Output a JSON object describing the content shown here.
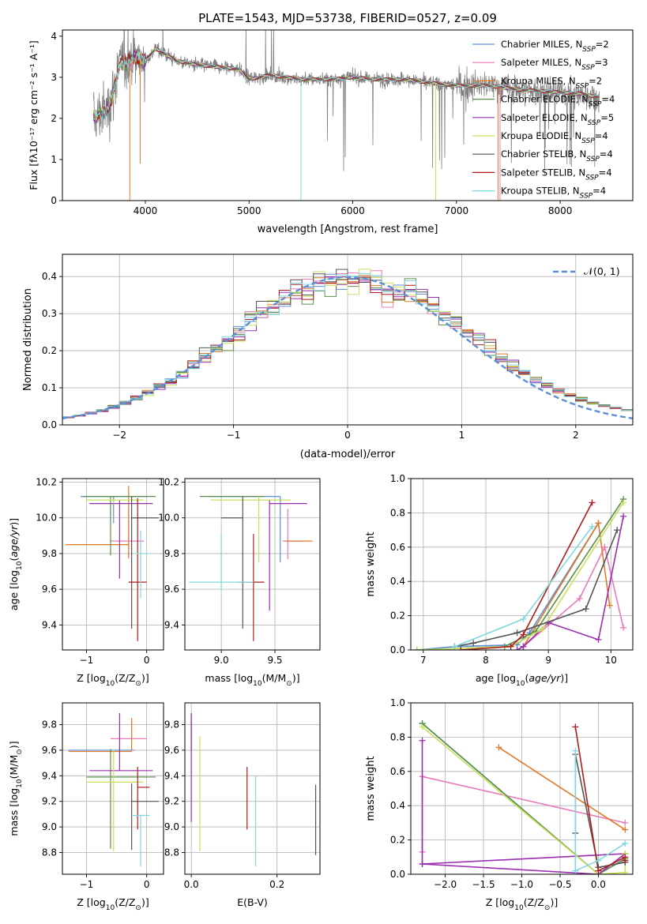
{
  "colors": {
    "Chabrier MILES": "#5b8fd6",
    "Salpeter MILES": "#e87ab9",
    "Kroupa MILES": "#e07b2c",
    "Chabrier ELODIE": "#5a8f4a",
    "Salpeter ELODIE": "#9a2db0",
    "Kroupa ELODIE": "#c8e05a",
    "Chabrier STELIB": "#555555",
    "Salpeter STELIB": "#b01c1c",
    "Kroupa STELIB": "#7fd8dd"
  },
  "chart_data": [
    {
      "panel": "spectrum",
      "type": "line",
      "title": "PLATE=1543, MJD=53738, FIBERID=0527, z=0.09",
      "xlabel": "wavelength [Angstrom, rest frame]",
      "ylabel": "Flux [f",
      "ylabel_full": "Flux [fλ10⁻¹⁷ erg cm⁻² s⁻¹ A⁻¹]",
      "xlim": [
        3200,
        8700
      ],
      "ylim": [
        0,
        4.15
      ],
      "xticks": [
        "4000",
        "5000",
        "6000",
        "7000",
        "8000"
      ],
      "yticks": [
        "0",
        "1",
        "2",
        "3",
        "4"
      ],
      "legend_placement": "right",
      "series": [
        {
          "name": "Chabrier MILES",
          "n_ssp": "2"
        },
        {
          "name": "Salpeter MILES",
          "n_ssp": "3"
        },
        {
          "name": "Kroupa MILES",
          "n_ssp": "2"
        },
        {
          "name": "Chabrier ELODIE",
          "n_ssp": "4"
        },
        {
          "name": "Salpeter ELODIE",
          "n_ssp": "5"
        },
        {
          "name": "Kroupa ELODIE",
          "n_ssp": "4"
        },
        {
          "name": "Chabrier STELIB",
          "n_ssp": "4"
        },
        {
          "name": "Salpeter STELIB",
          "n_ssp": "4"
        },
        {
          "name": "Kroupa STELIB",
          "n_ssp": "4"
        }
      ],
      "continuum_x": [
        3500,
        3650,
        3750,
        3900,
        4000,
        4100,
        4300,
        4500,
        4700,
        4900,
        5000,
        5200,
        5500,
        5800,
        6000,
        6200,
        6500,
        6800,
        7000,
        7300,
        7600,
        7900,
        8200,
        8400
      ],
      "continuum_y": [
        2.0,
        2.25,
        3.3,
        3.5,
        3.4,
        3.7,
        3.4,
        3.3,
        3.25,
        3.2,
        2.95,
        3.05,
        2.95,
        2.95,
        3.0,
        2.95,
        2.95,
        2.85,
        2.8,
        2.8,
        2.7,
        2.65,
        2.6,
        2.5
      ]
    },
    {
      "panel": "residuals",
      "type": "line",
      "xlabel": "(data-model)/error",
      "ylabel": "Normed distribution",
      "xlim": [
        -2.5,
        2.5
      ],
      "ylim": [
        0,
        0.46
      ],
      "xticks": [
        "−2",
        "−1",
        "0",
        "1",
        "2"
      ],
      "yticks": [
        "0.0",
        "0.1",
        "0.2",
        "0.3",
        "0.4"
      ],
      "legend_label": "𝒩(0, 1)",
      "legend_placement": "top-right",
      "reference": "normal(0,1)",
      "bin_width": 0.1
    },
    {
      "panel": "age-vs-Z",
      "type": "scatter",
      "xlabel": "Z [log",
      "ylabel": "age",
      "xlim": [
        -1.4,
        0.28
      ],
      "ylim": [
        9.26,
        10.22
      ],
      "xticks": [
        "−1",
        "0"
      ],
      "yticks": [
        "9.4",
        "9.6",
        "9.8",
        "10.0",
        "10.2"
      ],
      "points": [
        {
          "model": "Chabrier MILES",
          "x": -0.55,
          "xerr": [
            0.55,
            0.55
          ],
          "y": 10.12,
          "yerr": [
            0.15,
            0.0
          ]
        },
        {
          "model": "Salpeter MILES",
          "x": -0.3,
          "xerr": [
            0.3,
            0.25
          ],
          "y": 9.87,
          "yerr": [
            0.1,
            0.18
          ]
        },
        {
          "model": "Kroupa MILES",
          "x": -0.3,
          "xerr": [
            1.05,
            0.0
          ],
          "y": 9.85,
          "yerr": [
            0.07,
            0.33
          ]
        },
        {
          "model": "Chabrier ELODIE",
          "x": -0.6,
          "xerr": [
            0.45,
            0.75
          ],
          "y": 10.12,
          "yerr": [
            0.33,
            0.0
          ]
        },
        {
          "model": "Salpeter ELODIE",
          "x": -0.45,
          "xerr": [
            0.5,
            0.55
          ],
          "y": 10.08,
          "yerr": [
            0.42,
            0.02
          ]
        },
        {
          "model": "Kroupa ELODIE",
          "x": -0.55,
          "xerr": [
            0.45,
            0.5
          ],
          "y": 10.1,
          "yerr": [
            0.02,
            0.0
          ]
        },
        {
          "model": "Chabrier STELIB",
          "x": -0.25,
          "xerr": [
            0.0,
            0.45
          ],
          "y": 10.0,
          "yerr": [
            0.62,
            0.12
          ]
        },
        {
          "model": "Salpeter STELIB",
          "x": -0.15,
          "xerr": [
            0.15,
            0.15
          ],
          "y": 9.64,
          "yerr": [
            0.33,
            0.47
          ]
        },
        {
          "model": "Kroupa STELIB",
          "x": -0.1,
          "xerr": [
            0.1,
            0.15
          ],
          "y": 9.8,
          "yerr": [
            0.25,
            0.13
          ]
        }
      ]
    },
    {
      "panel": "age-vs-mass",
      "type": "scatter",
      "xlabel": "mass [log",
      "ylabel": "",
      "xlim": [
        8.66,
        9.92
      ],
      "ylim": [
        9.26,
        10.22
      ],
      "xticks": [
        "9.0",
        "9.5"
      ],
      "yticks": [
        "9.4",
        "9.6",
        "9.8",
        "10.0",
        "10.2"
      ],
      "points": [
        {
          "model": "Chabrier MILES",
          "x": 9.55,
          "xerr": [
            0.65,
            0.0
          ],
          "y": 10.12,
          "yerr": [
            0.37,
            0.0
          ]
        },
        {
          "model": "Salpeter MILES",
          "x": 9.62,
          "xerr": [
            0.05,
            0.15
          ],
          "y": 9.87,
          "yerr": [
            0.1,
            0.18
          ]
        },
        {
          "model": "Kroupa MILES",
          "x": 9.6,
          "xerr": [
            0.0,
            0.25
          ],
          "y": 9.87,
          "yerr": [
            0.0,
            0.0
          ]
        },
        {
          "model": "Chabrier ELODIE",
          "x": 9.4,
          "xerr": [
            0.6,
            0.0
          ],
          "y": 10.12,
          "yerr": [
            0.0,
            0.0
          ]
        },
        {
          "model": "Salpeter ELODIE",
          "x": 9.45,
          "xerr": [
            0.0,
            0.35
          ],
          "y": 10.08,
          "yerr": [
            0.6,
            0.02
          ]
        },
        {
          "model": "Kroupa ELODIE",
          "x": 9.35,
          "xerr": [
            0.45,
            0.3
          ],
          "y": 10.1,
          "yerr": [
            0.35,
            0.02
          ]
        },
        {
          "model": "Chabrier STELIB",
          "x": 9.2,
          "xerr": [
            0.2,
            0.0
          ],
          "y": 10.0,
          "yerr": [
            0.62,
            0.12
          ]
        },
        {
          "model": "Salpeter STELIB",
          "x": 9.3,
          "xerr": [
            0.15,
            0.1
          ],
          "y": 9.64,
          "yerr": [
            0.33,
            0.27
          ]
        },
        {
          "model": "Kroupa STELIB",
          "x": 9.0,
          "xerr": [
            0.3,
            0.3
          ],
          "y": 9.64,
          "yerr": [
            0.05,
            0.27
          ]
        }
      ]
    },
    {
      "panel": "weight-vs-age",
      "type": "line",
      "xlabel": "age  [log",
      "ylabel": "mass weight",
      "xlim": [
        6.8,
        10.35
      ],
      "ylim": [
        0,
        1
      ],
      "xticks": [
        "7",
        "8",
        "9",
        "10"
      ],
      "yticks": [
        "0.0",
        "0.2",
        "0.4",
        "0.6",
        "0.8",
        "1.0"
      ],
      "series": [
        {
          "name": "Chabrier MILES",
          "x": [
            6.9,
            7.5,
            8.5,
            8.7,
            9.8
          ],
          "y": [
            0.0,
            0.02,
            0.03,
            0.1,
            0.74
          ]
        },
        {
          "name": "Salpeter MILES",
          "x": [
            8.6,
            9.5,
            9.9,
            10.2
          ],
          "y": [
            0.02,
            0.3,
            0.6,
            0.13
          ]
        },
        {
          "name": "Kroupa MILES",
          "x": [
            8.6,
            9.8,
            9.98
          ],
          "y": [
            0.02,
            0.74,
            0.26
          ]
        },
        {
          "name": "Chabrier ELODIE",
          "x": [
            6.9,
            8.3,
            8.8,
            10.2
          ],
          "y": [
            0.0,
            0.02,
            0.11,
            0.88
          ]
        },
        {
          "name": "Salpeter ELODIE",
          "x": [
            8.5,
            8.6,
            9.0,
            9.8,
            10.2
          ],
          "y": [
            0.0,
            0.02,
            0.16,
            0.06,
            0.78
          ]
        },
        {
          "name": "Kroupa ELODIE",
          "x": [
            6.9,
            8.4,
            8.9,
            10.2
          ],
          "y": [
            0.0,
            0.02,
            0.12,
            0.86
          ]
        },
        {
          "name": "Chabrier STELIB",
          "x": [
            7.5,
            7.8,
            8.5,
            9.6,
            10.1
          ],
          "y": [
            0.02,
            0.04,
            0.1,
            0.24,
            0.7
          ]
        },
        {
          "name": "Salpeter STELIB",
          "x": [
            7.6,
            8.4,
            8.6,
            9.7
          ],
          "y": [
            0.0,
            0.02,
            0.09,
            0.86
          ]
        },
        {
          "name": "Kroupa STELIB",
          "x": [
            7.5,
            8.6,
            9.7
          ],
          "y": [
            0.02,
            0.18,
            0.72
          ]
        }
      ]
    },
    {
      "panel": "mass-vs-Z",
      "type": "scatter",
      "xlabel": "Z [log",
      "ylabel": "mass [log",
      "xlim": [
        -1.4,
        0.28
      ],
      "ylim": [
        8.63,
        9.97
      ],
      "xticks": [
        "−1",
        "0"
      ],
      "yticks": [
        "8.8",
        "9.0",
        "9.2",
        "9.4",
        "9.6",
        "9.8"
      ],
      "points": [
        {
          "model": "Chabrier MILES",
          "x": -0.7,
          "xerr": [
            0.6,
            0.5
          ],
          "y": 9.6,
          "yerr": [
            0.0,
            0.0
          ]
        },
        {
          "model": "Salpeter MILES",
          "x": -0.25,
          "xerr": [
            0.35,
            0.25
          ],
          "y": 9.69,
          "yerr": [
            0.0,
            0.16
          ]
        },
        {
          "model": "Kroupa MILES",
          "x": -0.25,
          "xerr": [
            1.05,
            0.0
          ],
          "y": 9.59,
          "yerr": [
            0.0,
            0.26
          ]
        },
        {
          "model": "Chabrier ELODIE",
          "x": -0.6,
          "xerr": [
            0.4,
            0.75
          ],
          "y": 9.39,
          "yerr": [
            0.56,
            0.22
          ]
        },
        {
          "model": "Salpeter ELODIE",
          "x": -0.45,
          "xerr": [
            0.5,
            0.55
          ],
          "y": 9.44,
          "yerr": [
            0.0,
            0.45
          ]
        },
        {
          "model": "Kroupa ELODIE",
          "x": -0.55,
          "xerr": [
            0.45,
            0.5
          ],
          "y": 9.35,
          "yerr": [
            0.54,
            0.25
          ]
        },
        {
          "model": "Chabrier STELIB",
          "x": -0.25,
          "xerr": [
            0.0,
            0.45
          ],
          "y": 9.2,
          "yerr": [
            0.38,
            0.14
          ]
        },
        {
          "model": "Salpeter STELIB",
          "x": -0.15,
          "xerr": [
            0.0,
            0.2
          ],
          "y": 9.31,
          "yerr": [
            0.33,
            0.16
          ]
        },
        {
          "model": "Kroupa STELIB",
          "x": -0.1,
          "xerr": [
            0.15,
            0.15
          ],
          "y": 9.09,
          "yerr": [
            0.4,
            0.0
          ]
        }
      ]
    },
    {
      "panel": "mass-vs-EBV",
      "type": "scatter",
      "xlabel": "E(B-V)",
      "ylabel": "",
      "xlim": [
        -0.015,
        0.3
      ],
      "ylim": [
        8.63,
        9.97
      ],
      "xticks": [
        "0.0",
        "0.2"
      ],
      "yticks": [
        "8.8",
        "9.0",
        "9.2",
        "9.4",
        "9.6",
        "9.8"
      ],
      "points": [
        {
          "model": "Chabrier MILES",
          "x": 0.0,
          "y": 9.6,
          "yerr": [
            0.0,
            0.28
          ]
        },
        {
          "model": "Salpeter MILES",
          "x": 0.0,
          "y": 9.69,
          "yerr": [
            0.0,
            0.16
          ]
        },
        {
          "model": "Kroupa MILES",
          "x": 0.0,
          "y": 9.59,
          "yerr": [
            0.0,
            0.26
          ]
        },
        {
          "model": "Chabrier ELODIE",
          "x": 0.0,
          "y": 9.39,
          "yerr": [
            0.0,
            0.0
          ]
        },
        {
          "model": "Salpeter ELODIE",
          "x": 0.0,
          "y": 9.44,
          "yerr": [
            0.4,
            0.45
          ]
        },
        {
          "model": "Kroupa ELODIE",
          "x": 0.02,
          "y": 9.35,
          "yerr": [
            0.54,
            0.36
          ]
        },
        {
          "model": "Chabrier STELIB",
          "x": 0.29,
          "y": 9.2,
          "yerr": [
            0.42,
            0.13
          ]
        },
        {
          "model": "Salpeter STELIB",
          "x": 0.13,
          "y": 9.31,
          "yerr": [
            0.33,
            0.16
          ]
        },
        {
          "model": "Kroupa STELIB",
          "x": 0.15,
          "y": 9.09,
          "yerr": [
            0.4,
            0.31
          ]
        }
      ]
    },
    {
      "panel": "weight-vs-Z",
      "type": "line",
      "xlabel": "Z [log",
      "ylabel": "mass weight",
      "xlim": [
        -2.45,
        0.45
      ],
      "ylim": [
        0,
        1
      ],
      "xticks": [
        "−2.0",
        "−1.5",
        "−1.0",
        "−0.5",
        "0.0"
      ],
      "yticks": [
        "0.0",
        "0.2",
        "0.4",
        "0.6",
        "0.8",
        "1.0"
      ],
      "series": [
        {
          "name": "Chabrier MILES",
          "x": [
            -2.3,
            0.0,
            0.35
          ],
          "y": [
            0.88,
            0.0,
            0.09
          ]
        },
        {
          "name": "Salpeter MILES",
          "x": [
            -2.3,
            -2.3,
            0.35
          ],
          "y": [
            0.13,
            0.57,
            0.3
          ]
        },
        {
          "name": "Kroupa MILES",
          "x": [
            -1.3,
            0.35
          ],
          "y": [
            0.74,
            0.26
          ]
        },
        {
          "name": "Chabrier ELODIE",
          "x": [
            -2.3,
            0.0,
            0.35
          ],
          "y": [
            0.88,
            0.0,
            0.09
          ]
        },
        {
          "name": "Salpeter ELODIE",
          "x": [
            -2.3,
            -2.3,
            0.0,
            0.35,
            -2.3
          ],
          "y": [
            0.78,
            0.06,
            0.0,
            0.12,
            0.06
          ]
        },
        {
          "name": "Kroupa ELODIE",
          "x": [
            -2.3,
            0.0,
            0.35,
            0.35
          ],
          "y": [
            0.86,
            0.0,
            0.01,
            0.12
          ]
        },
        {
          "name": "Chabrier STELIB",
          "x": [
            -0.3,
            -0.3,
            0.0,
            0.35
          ],
          "y": [
            0.24,
            0.7,
            0.04,
            0.07
          ]
        },
        {
          "name": "Salpeter STELIB",
          "x": [
            -0.3,
            0.0,
            0.35,
            0.35
          ],
          "y": [
            0.86,
            0.02,
            0.1,
            0.08
          ]
        },
        {
          "name": "Kroupa STELIB",
          "x": [
            -0.3,
            -0.3,
            0.0,
            0.35
          ],
          "y": [
            0.72,
            0.02,
            0.08,
            0.18
          ]
        }
      ]
    }
  ]
}
